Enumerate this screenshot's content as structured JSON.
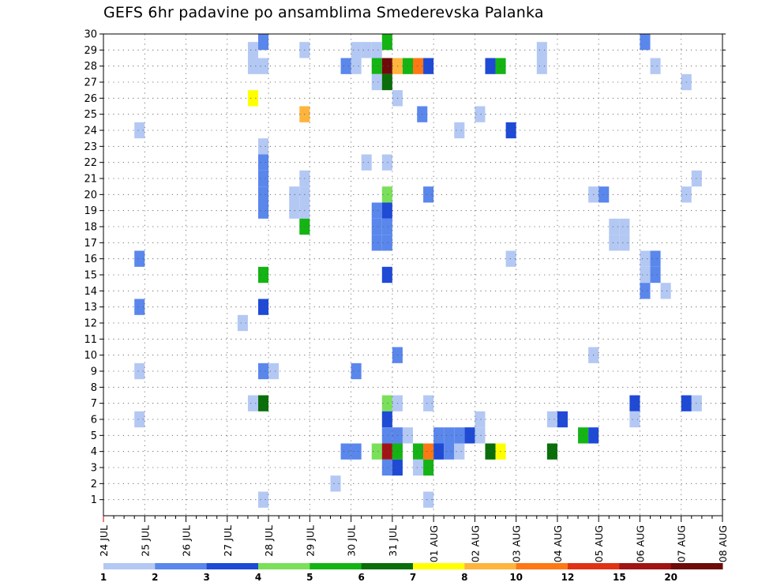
{
  "chart_data": {
    "type": "heatmap",
    "title": "GEFS 6hr padavine po ansamblima Smederevska Palanka",
    "xlabel": "",
    "ylabel": "",
    "x_ticks": [
      "24 JUL",
      "25 JUL",
      "26 JUL",
      "27 JUL",
      "28 JUL",
      "29 JUL",
      "30 JUL",
      "31 JUL",
      "01 AUG",
      "02 AUG",
      "03 AUG",
      "04 AUG",
      "05 AUG",
      "06 AUG",
      "07 AUG",
      "08 AUG"
    ],
    "y_ticks": [
      1,
      2,
      3,
      4,
      5,
      6,
      7,
      8,
      9,
      10,
      11,
      12,
      13,
      14,
      15,
      16,
      17,
      18,
      19,
      20,
      21,
      22,
      23,
      24,
      25,
      26,
      27,
      28,
      29,
      30
    ],
    "xlim_days": [
      0,
      15
    ],
    "ylim": [
      0,
      30
    ],
    "grid": true,
    "legend": {
      "placement": "bottom",
      "levels": [
        1,
        2,
        3,
        4,
        5,
        6,
        7,
        8,
        10,
        12,
        15,
        20
      ],
      "colors": [
        "#b4c8f4",
        "#5a87ec",
        "#1e4ad6",
        "#7ae05a",
        "#14b414",
        "#0a6e0a",
        "#ffff00",
        "#ffb43c",
        "#ff7814",
        "#e03214",
        "#a01414",
        "#6e0a0a"
      ]
    },
    "cells_note": "each cell: [day offset from 24 JUL 00z in 6h steps, ensemble member, precipitation mm]",
    "cells": [
      [
        3.75,
        30,
        2.5
      ],
      [
        6.75,
        30,
        5.5
      ],
      [
        13.0,
        30,
        2.5
      ],
      [
        15.0,
        30,
        4.5
      ],
      [
        3.5,
        29,
        1.5
      ],
      [
        4.75,
        29,
        1.5
      ],
      [
        6.0,
        29,
        1.5
      ],
      [
        6.25,
        29,
        1.5
      ],
      [
        6.5,
        29,
        1.5
      ],
      [
        10.5,
        29,
        1.5
      ],
      [
        3.5,
        28,
        1.5
      ],
      [
        3.75,
        28,
        1.5
      ],
      [
        5.75,
        28,
        2.5
      ],
      [
        6.0,
        28,
        1.5
      ],
      [
        6.5,
        28,
        5.5
      ],
      [
        6.75,
        28,
        22
      ],
      [
        7.0,
        28,
        9
      ],
      [
        7.25,
        28,
        5.5
      ],
      [
        7.5,
        28,
        11
      ],
      [
        7.75,
        28,
        3.5
      ],
      [
        9.25,
        28,
        3.5
      ],
      [
        9.5,
        28,
        5.5
      ],
      [
        10.5,
        28,
        1.5
      ],
      [
        13.25,
        28,
        1.5
      ],
      [
        6.5,
        27,
        1.5
      ],
      [
        6.75,
        27,
        6.5
      ],
      [
        14.0,
        27,
        1.5
      ],
      [
        3.5,
        26,
        7.5
      ],
      [
        7.0,
        26,
        1.5
      ],
      [
        4.75,
        25,
        9
      ],
      [
        7.6,
        25,
        2.5
      ],
      [
        9.0,
        25,
        1.5
      ],
      [
        0.75,
        24,
        1.5
      ],
      [
        8.5,
        24,
        1.5
      ],
      [
        9.75,
        24,
        3.5
      ],
      [
        3.75,
        23,
        1.5
      ],
      [
        3.75,
        22,
        2.5
      ],
      [
        6.25,
        22,
        1.5
      ],
      [
        6.75,
        22,
        1.5
      ],
      [
        3.75,
        21,
        2.5
      ],
      [
        4.75,
        21,
        1.5
      ],
      [
        14.25,
        21,
        1.5
      ],
      [
        3.75,
        20,
        2.5
      ],
      [
        4.5,
        20,
        1.5
      ],
      [
        4.75,
        20,
        1.5
      ],
      [
        6.75,
        20,
        4.5
      ],
      [
        7.75,
        20,
        2.5
      ],
      [
        11.75,
        20,
        1.5
      ],
      [
        12.0,
        20,
        2.5
      ],
      [
        14.0,
        20,
        1.5
      ],
      [
        3.75,
        19,
        2.5
      ],
      [
        4.5,
        19,
        1.5
      ],
      [
        4.75,
        19,
        1.5
      ],
      [
        6.5,
        19,
        2.5
      ],
      [
        6.75,
        19,
        3.5
      ],
      [
        4.75,
        18,
        5.5
      ],
      [
        6.5,
        18,
        2.5
      ],
      [
        6.75,
        18,
        2.5
      ],
      [
        12.25,
        18,
        1.5
      ],
      [
        12.5,
        18,
        1.5
      ],
      [
        6.5,
        17,
        2.5
      ],
      [
        6.75,
        17,
        2.5
      ],
      [
        12.25,
        17,
        1.5
      ],
      [
        12.5,
        17,
        1.5
      ],
      [
        0.75,
        16,
        2.5
      ],
      [
        9.75,
        16,
        1.5
      ],
      [
        13.0,
        16,
        1.5
      ],
      [
        13.25,
        16,
        2.5
      ],
      [
        3.75,
        15,
        5.5
      ],
      [
        6.75,
        15,
        3.5
      ],
      [
        13.0,
        15,
        1.5
      ],
      [
        13.25,
        15,
        2.5
      ],
      [
        13.0,
        14,
        2.5
      ],
      [
        13.5,
        14,
        1.5
      ],
      [
        15.0,
        14,
        1.5
      ],
      [
        0.75,
        13,
        2.5
      ],
      [
        3.75,
        13,
        3.5
      ],
      [
        3.25,
        12,
        1.5
      ],
      [
        7.0,
        10,
        2.5
      ],
      [
        11.75,
        10,
        1.5
      ],
      [
        0.75,
        9,
        1.5
      ],
      [
        3.75,
        9,
        2.5
      ],
      [
        4.0,
        9,
        1.5
      ],
      [
        6.0,
        9,
        2.5
      ],
      [
        3.5,
        7,
        1.5
      ],
      [
        3.75,
        7,
        6.5
      ],
      [
        6.75,
        7,
        4.5
      ],
      [
        7.0,
        7,
        1.5
      ],
      [
        7.75,
        7,
        1.5
      ],
      [
        12.75,
        7,
        3.5
      ],
      [
        14.0,
        7,
        3.5
      ],
      [
        14.25,
        7,
        1.5
      ],
      [
        15.0,
        7,
        2.5
      ],
      [
        0.75,
        6,
        1.5
      ],
      [
        6.75,
        6,
        3.5
      ],
      [
        9.0,
        6,
        1.5
      ],
      [
        10.75,
        6,
        1.5
      ],
      [
        11.0,
        6,
        3.5
      ],
      [
        12.75,
        6,
        1.5
      ],
      [
        6.75,
        5,
        2.5
      ],
      [
        7.0,
        5,
        2.5
      ],
      [
        7.25,
        5,
        1.5
      ],
      [
        8.25,
        5,
        2.5
      ],
      [
        8.5,
        5,
        2.5
      ],
      [
        8.75,
        5,
        1.5
      ],
      [
        9.0,
        5,
        1.5
      ],
      [
        8.0,
        5,
        2.5
      ],
      [
        8.75,
        5,
        3.5
      ],
      [
        11.5,
        5,
        5.5
      ],
      [
        11.75,
        5,
        3.5
      ],
      [
        5.75,
        4,
        2.5
      ],
      [
        6.0,
        4,
        2.5
      ],
      [
        6.5,
        4,
        4.5
      ],
      [
        6.75,
        4,
        16
      ],
      [
        7.0,
        4,
        5.5
      ],
      [
        7.5,
        4,
        5.5
      ],
      [
        7.75,
        4,
        11
      ],
      [
        8.0,
        4,
        3.5
      ],
      [
        8.25,
        4,
        2.5
      ],
      [
        8.5,
        4,
        1.5
      ],
      [
        9.25,
        4,
        6.5
      ],
      [
        9.5,
        4,
        7.5
      ],
      [
        10.75,
        4,
        6.5
      ],
      [
        6.75,
        3,
        2.5
      ],
      [
        7.0,
        3,
        3.5
      ],
      [
        7.5,
        3,
        1.5
      ],
      [
        7.75,
        3,
        5.5
      ],
      [
        5.5,
        2,
        1.5
      ],
      [
        3.75,
        1,
        1.5
      ],
      [
        7.75,
        1,
        1.5
      ],
      [
        15.0,
        0,
        1.5
      ]
    ]
  }
}
